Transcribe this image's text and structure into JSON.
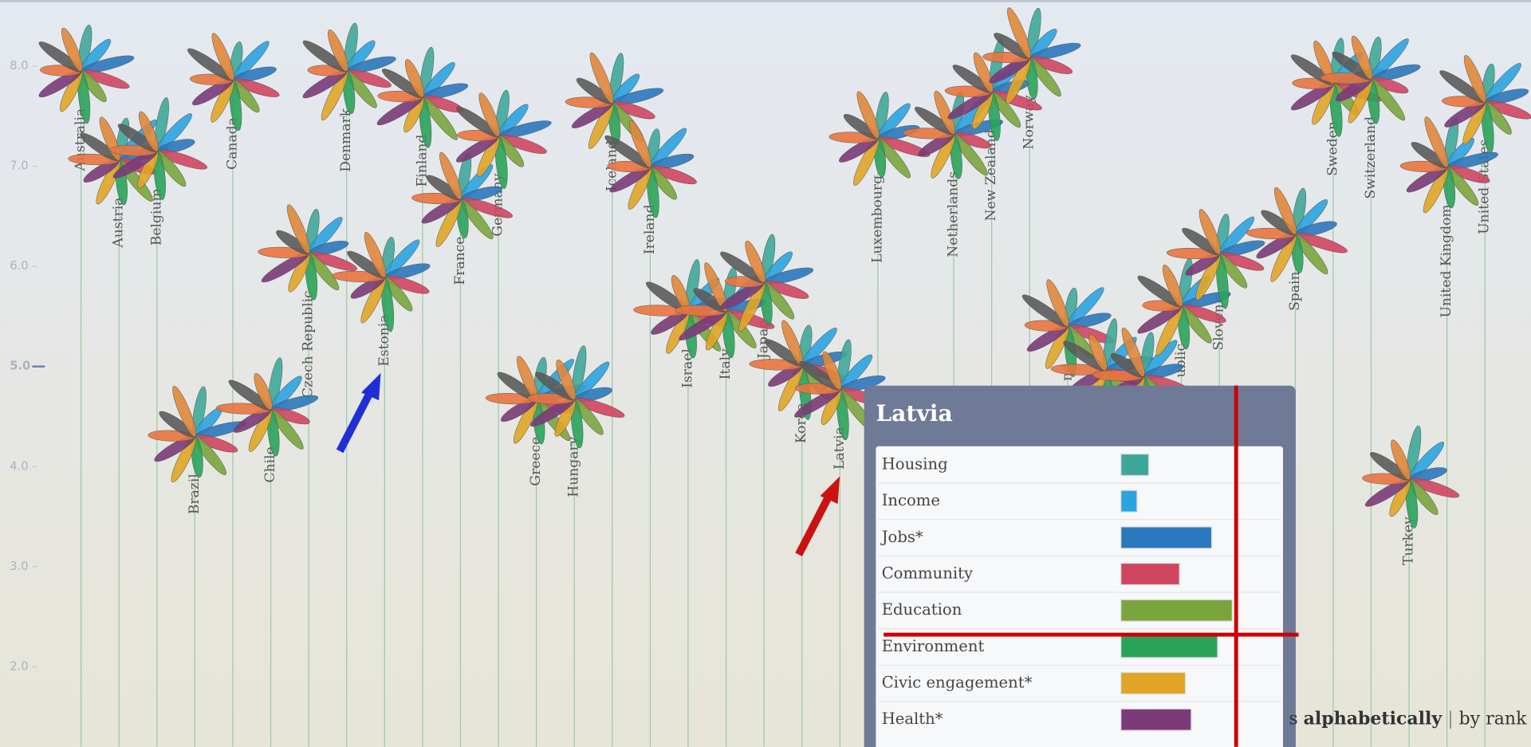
{
  "chart_data": {
    "type": "flower",
    "categories": [
      "Australia",
      "Austria",
      "Belgium",
      "Brazil",
      "Canada",
      "Chile",
      "Czech Republic",
      "Denmark",
      "Estonia",
      "Finland",
      "France",
      "Germany",
      "Greece",
      "Hungary",
      "Iceland",
      "Ireland",
      "Israel",
      "Italy",
      "Japan",
      "Korea",
      "Latvia",
      "Luxembourg",
      null,
      "Netherlands",
      "New Zealand",
      "Norway",
      "nd",
      null,
      null,
      "ublic",
      "Slovenia",
      null,
      "Spain",
      "Sweden",
      "Switzerland",
      "Turkey",
      "United Kingdom",
      "United States"
    ],
    "values": [
      7.95,
      7.06,
      7.15,
      4.3,
      7.86,
      4.57,
      6.13,
      7.95,
      5.89,
      7.69,
      6.67,
      7.3,
      4.67,
      4.67,
      7.63,
      6.99,
      5.55,
      5.55,
      5.84,
      5.01,
      4.77,
      7.28,
      null,
      7.32,
      7.74,
      8.08,
      5.4,
      4.96,
      4.9,
      5.6,
      6.12,
      null,
      6.32,
      7.82,
      7.87,
      3.87,
      6.99,
      7.64
    ],
    "ylim": [
      1.2,
      8.66
    ],
    "yticks": [
      {
        "value": 2,
        "label": "2.0"
      },
      {
        "value": 3,
        "label": "3.0"
      },
      {
        "value": 4,
        "label": "4.0"
      },
      {
        "value": 5,
        "label": "5.0"
      },
      {
        "value": 6,
        "label": "6.0"
      },
      {
        "value": 7,
        "label": "7.0"
      },
      {
        "value": 8,
        "label": "8.0"
      }
    ],
    "petal_colors": [
      "#3fa79a",
      "#2ba3e0",
      "#2a78bd",
      "#d04560",
      "#7aa53c",
      "#2aa35a",
      "#e0a526",
      "#7b3a78",
      "#e8743e",
      "#5b5b5b",
      "#e0873a"
    ],
    "stem_color": "#9cc8a4"
  },
  "tooltip": {
    "title": "Latvia",
    "xlim": [
      0,
      10
    ],
    "rows": [
      {
        "label": "Housing",
        "value": 1.9,
        "color": "#3fa79a"
      },
      {
        "label": "Income",
        "value": 1.1,
        "color": "#2ba3e0"
      },
      {
        "label": "Jobs*",
        "value": 6.2,
        "color": "#2a78bd"
      },
      {
        "label": "Community",
        "value": 4.0,
        "color": "#d04560"
      },
      {
        "label": "Education",
        "value": 7.6,
        "color": "#7aa53c"
      },
      {
        "label": "Environment",
        "value": 6.6,
        "color": "#2aa35a"
      },
      {
        "label": "Civic engagement*",
        "value": 4.4,
        "color": "#e0a526"
      },
      {
        "label": "Health*",
        "value": 4.8,
        "color": "#7b3a78"
      }
    ]
  },
  "footer": {
    "prefix": "s",
    "active": "alphabetically",
    "separator": "|",
    "option": "by rank"
  }
}
